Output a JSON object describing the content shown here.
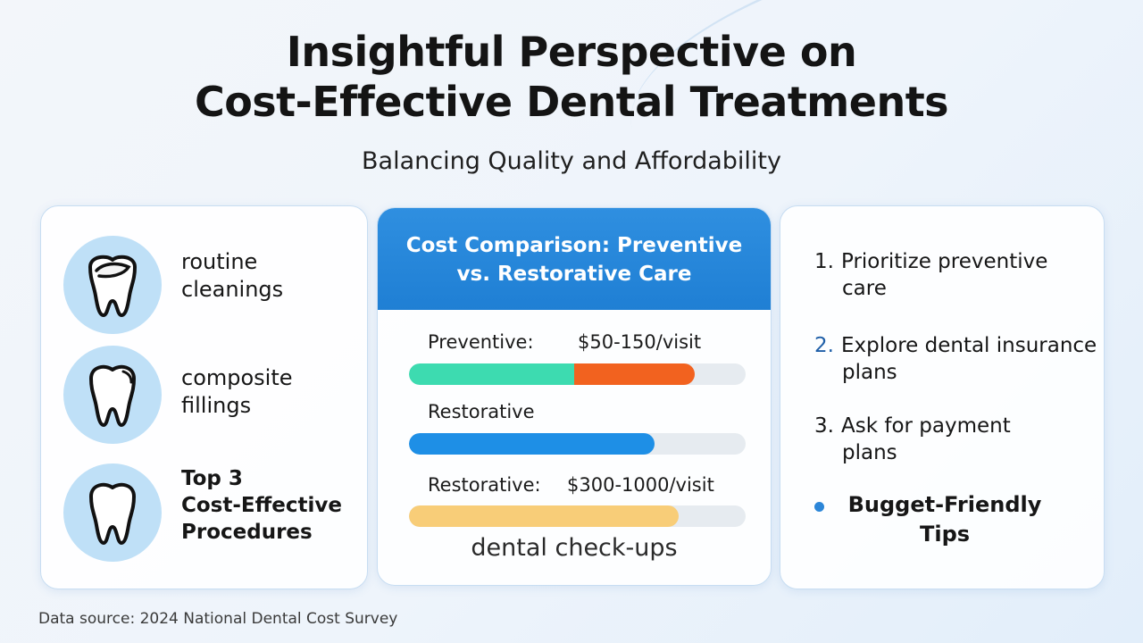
{
  "page": {
    "title_line1": "Insightful Perspective on",
    "title_line2": "Cost-Effective Dental Treatments",
    "subtitle": "Balancing Quality and Affordability",
    "source": "Data source: 2024 National Dental Cost Survey"
  },
  "left_card": {
    "items": [
      {
        "icon": "tooth-cleaning-icon",
        "label_line1": "routine",
        "label_line2": "cleanings"
      },
      {
        "icon": "tooth-filling-icon",
        "label_line1": "composite",
        "label_line2": "fillings"
      },
      {
        "icon": "tooth-icon",
        "label_line1": "Top 3",
        "label_line2": "Cost-Effective",
        "label_line3": "Procedures"
      }
    ]
  },
  "comparison": {
    "header_line1": "Cost Comparison: Preventive",
    "header_line2": "vs. Restorative Care",
    "rows": [
      {
        "label": "Preventive:",
        "value": "$50-150/visit"
      },
      {
        "label": "Restorative",
        "value": ""
      },
      {
        "label": "Restorative:",
        "value": "$300-1000/visit"
      }
    ],
    "bars": [
      {
        "segments": [
          {
            "start": 0.0,
            "end": 0.49,
            "color": "#3ddbb0"
          },
          {
            "start": 0.49,
            "end": 0.85,
            "color": "#f2621f"
          }
        ]
      },
      {
        "segments": [
          {
            "start": 0.0,
            "end": 0.73,
            "color": "#1e8fe6"
          }
        ]
      },
      {
        "segments": [
          {
            "start": 0.0,
            "end": 0.8,
            "color": "#f8cd78"
          }
        ]
      }
    ],
    "caption": "dental check-ups"
  },
  "tips": {
    "items": [
      {
        "num": "1.",
        "line1": "Prioritize preventive",
        "line2": "care"
      },
      {
        "num": "2.",
        "line1": "Explore dental insurance",
        "line2": "plans"
      },
      {
        "num": "3.",
        "line1": "Ask for payment",
        "line2": "plans"
      }
    ],
    "bullet_line1": "Bugget-Friendly",
    "bullet_line2": "Tips"
  },
  "colors": {
    "accent_blue": "#1f7fd4",
    "icon_circle": "#bfe0f7",
    "card_border": "#c7ddf2"
  }
}
